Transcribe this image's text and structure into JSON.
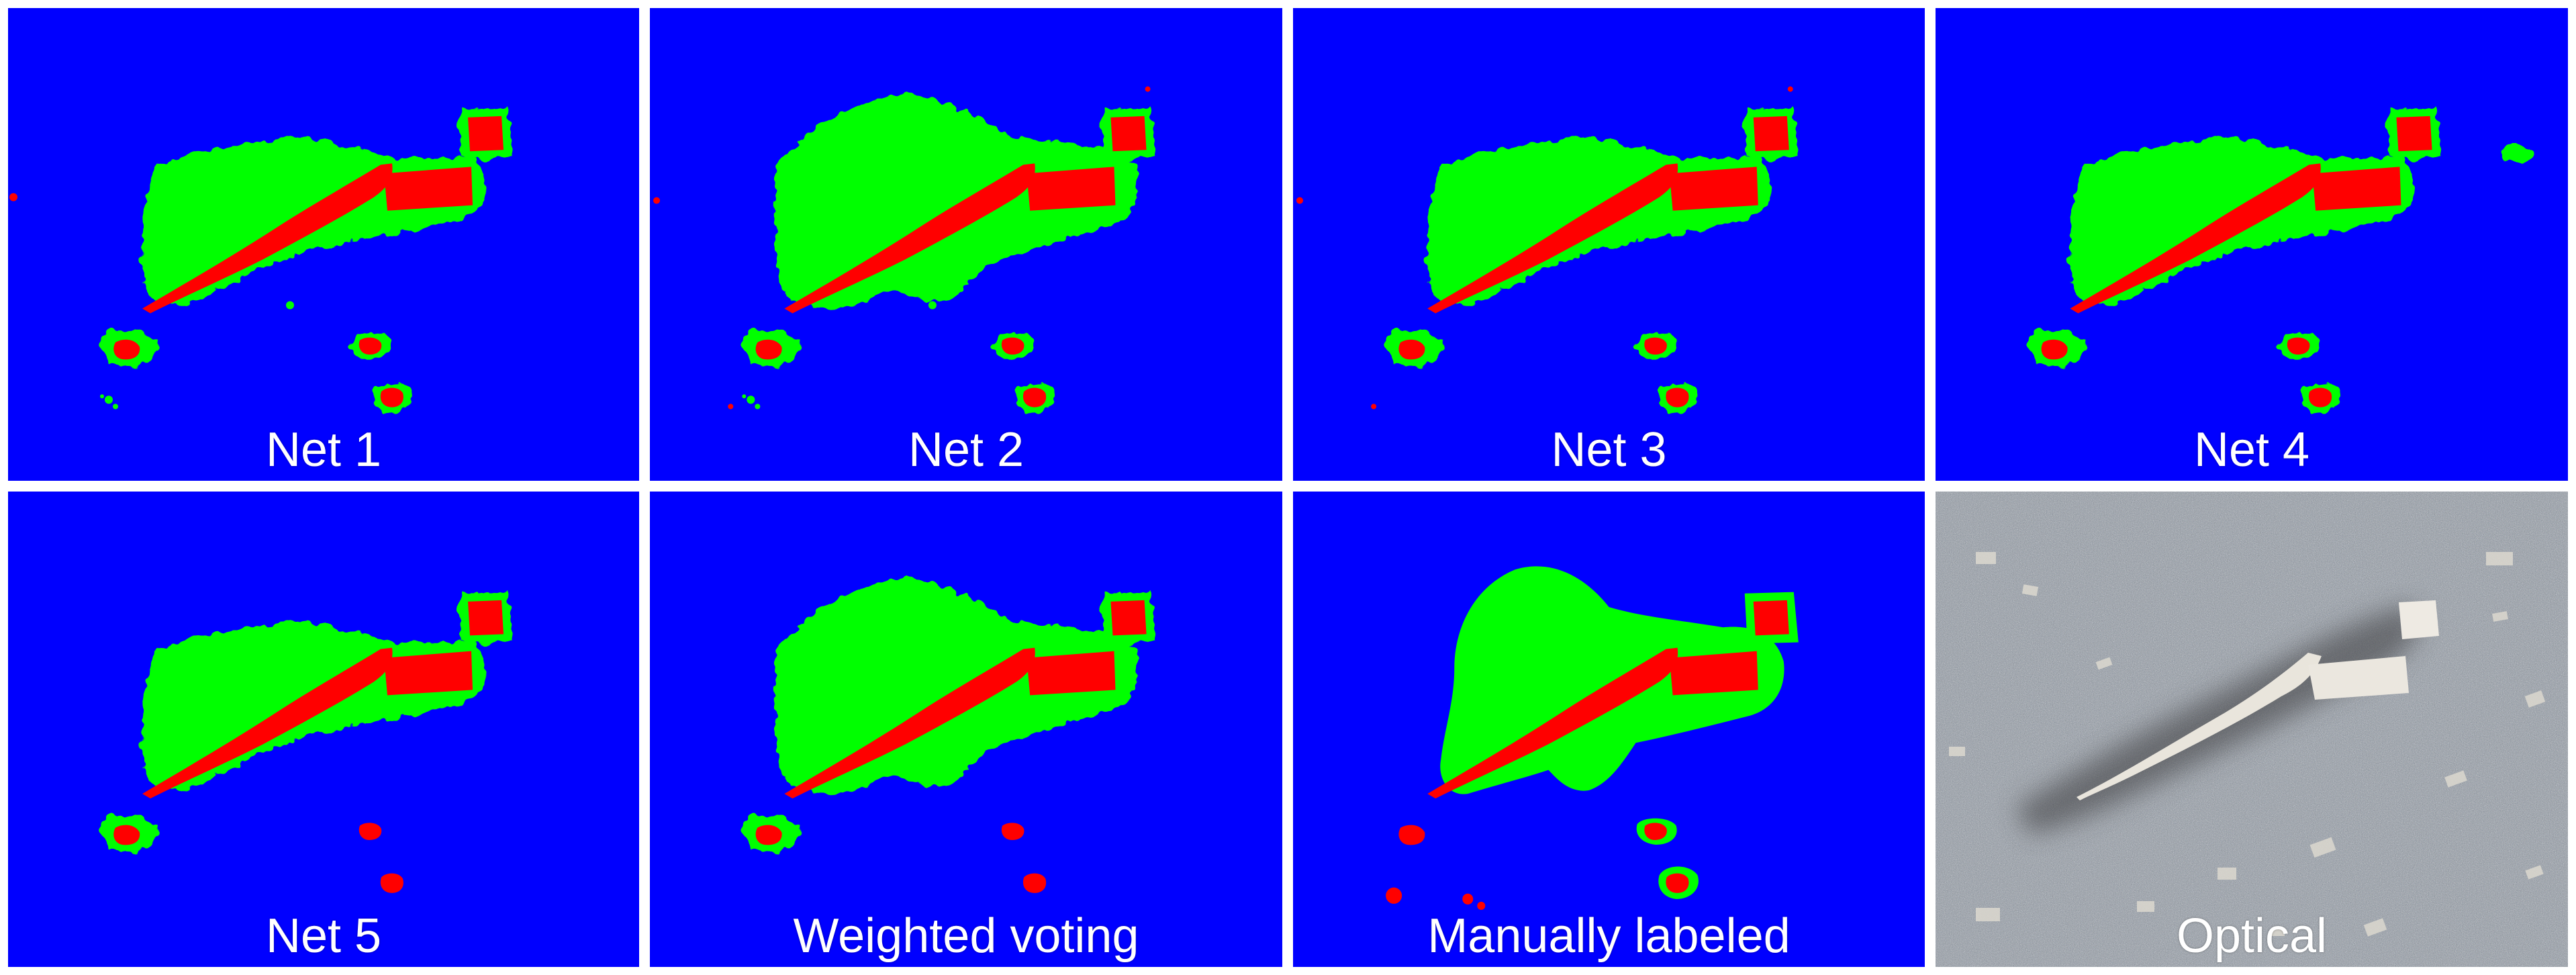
{
  "colors": {
    "background_class": "#0000ff",
    "halo_class": "#00ff00",
    "object_class": "#ff0000",
    "separator": "#ffffff"
  },
  "panels": [
    {
      "id": "net1",
      "label": "Net 1",
      "kind": "segmentation",
      "variant": "net1"
    },
    {
      "id": "net2",
      "label": "Net 2",
      "kind": "segmentation",
      "variant": "net2"
    },
    {
      "id": "net3",
      "label": "Net 3",
      "kind": "segmentation",
      "variant": "net3"
    },
    {
      "id": "net4",
      "label": "Net 4",
      "kind": "segmentation",
      "variant": "net4"
    },
    {
      "id": "net5",
      "label": "Net 5",
      "kind": "segmentation",
      "variant": "net5"
    },
    {
      "id": "weighted",
      "label": "Weighted voting",
      "kind": "segmentation",
      "variant": "weighted"
    },
    {
      "id": "manual",
      "label": "Manually labeled",
      "kind": "segmentation",
      "variant": "manual"
    },
    {
      "id": "optical",
      "label": "Optical",
      "kind": "photo",
      "variant": "optical"
    }
  ]
}
